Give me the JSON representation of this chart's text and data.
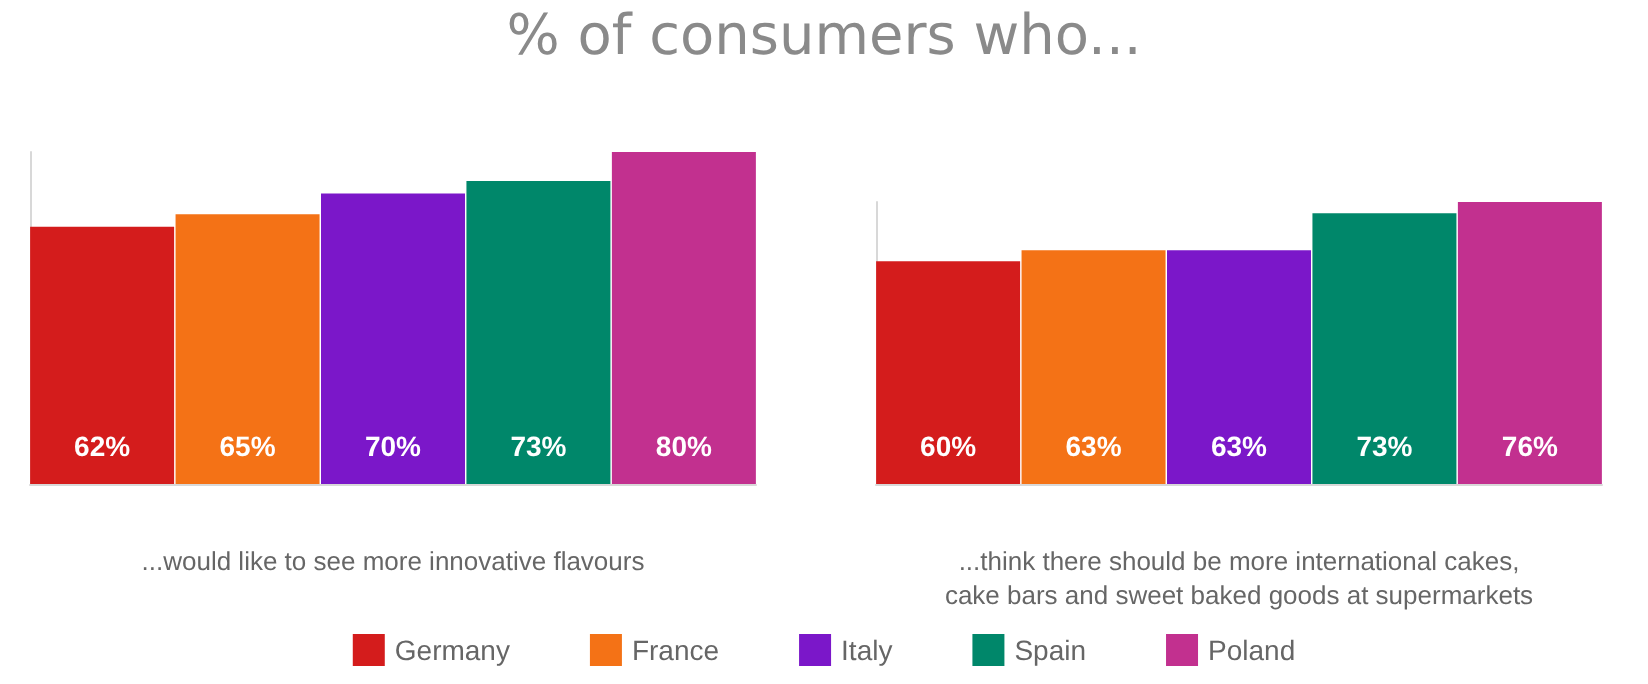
{
  "chart_data": [
    {
      "type": "bar",
      "title": "% of consumers who...",
      "xlabel": "...would like to see more innovative flavours",
      "categories": [
        null
      ],
      "legend": "bottom",
      "series": [
        {
          "name": "Germany",
          "color": "#d41c1c",
          "values": [
            62
          ],
          "value_labels": [
            "62%"
          ]
        },
        {
          "name": "France",
          "color": "#f47216",
          "values": [
            65
          ],
          "value_labels": [
            "65%"
          ]
        },
        {
          "name": "Italy",
          "color": "#7b17c9",
          "values": [
            70
          ],
          "value_labels": [
            "70%"
          ]
        },
        {
          "name": "Spain",
          "color": "#00876a",
          "values": [
            73
          ],
          "value_labels": [
            "73%"
          ]
        },
        {
          "name": "Poland",
          "color": "#c2308f",
          "values": [
            80
          ],
          "value_labels": [
            "80%"
          ]
        }
      ]
    },
    {
      "type": "bar",
      "xlabel": "...think there should be more international cakes,\ncake bars and sweet baked goods at supermarkets",
      "categories": [
        null
      ],
      "series": [
        {
          "color": "#d41c1c",
          "values": [
            60
          ],
          "value_labels": [
            "60%"
          ]
        },
        {
          "color": "#f47216",
          "values": [
            63
          ],
          "value_labels": [
            "63%"
          ]
        },
        {
          "color": "#7b17c9",
          "values": [
            63
          ],
          "value_labels": [
            "63%"
          ]
        },
        {
          "color": "#00876a",
          "values": [
            73
          ],
          "value_labels": [
            "73%"
          ]
        },
        {
          "color": "#c2308f",
          "values": [
            76
          ],
          "value_labels": [
            "76%"
          ]
        }
      ]
    }
  ]
}
